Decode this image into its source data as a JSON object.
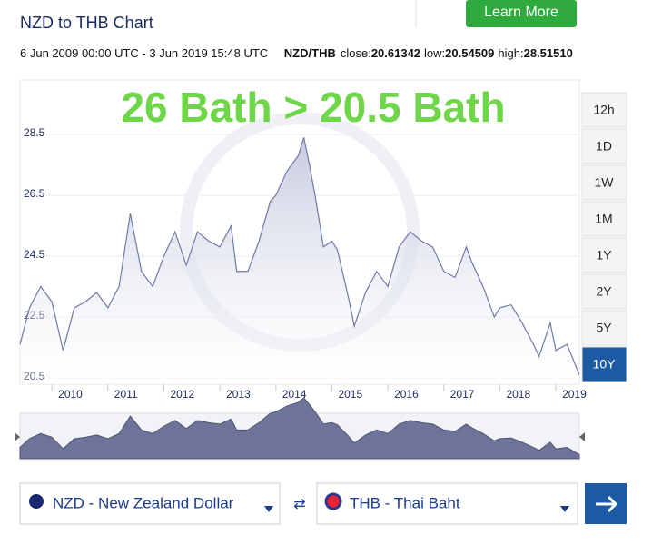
{
  "header": {
    "title": "NZD to THB Chart",
    "button": "Learn More"
  },
  "range": "6 Jun 2009 00:00 UTC - 3 Jun 2019 15:48 UTC",
  "stats": {
    "pair": "NZD/THB",
    "items": [
      {
        "label": "close:",
        "value": "20.61342"
      },
      {
        "label": "low:",
        "value": "20.54509"
      },
      {
        "label": "high:",
        "value": "28.51510"
      }
    ]
  },
  "periods": [
    {
      "label": "12h",
      "active": false
    },
    {
      "label": "1D",
      "active": false
    },
    {
      "label": "1W",
      "active": false
    },
    {
      "label": "1M",
      "active": false
    },
    {
      "label": "1Y",
      "active": false
    },
    {
      "label": "2Y",
      "active": false
    },
    {
      "label": "5Y",
      "active": false
    },
    {
      "label": "10Y",
      "active": true
    }
  ],
  "converter": {
    "from": "NZD - New Zealand Dollar",
    "to": "THB - Thai Baht"
  },
  "chart_data": {
    "type": "area",
    "annotation": "26 Bath > 20.5 Bath",
    "series": [
      {
        "name": "NZD/THB",
        "color": "#6e7aa8",
        "x": [
          2009.43,
          2009.6,
          2009.8,
          2010.0,
          2010.2,
          2010.4,
          2010.6,
          2010.8,
          2011.0,
          2011.2,
          2011.4,
          2011.6,
          2011.8,
          2012.0,
          2012.2,
          2012.4,
          2012.6,
          2012.8,
          2013.0,
          2013.2,
          2013.3,
          2013.5,
          2013.7,
          2013.9,
          2014.0,
          2014.2,
          2014.4,
          2014.5,
          2014.6,
          2014.7,
          2014.85,
          2015.0,
          2015.1,
          2015.3,
          2015.4,
          2015.6,
          2015.8,
          2016.0,
          2016.2,
          2016.4,
          2016.6,
          2016.8,
          2017.0,
          2017.2,
          2017.4,
          2017.5,
          2017.7,
          2017.9,
          2018.0,
          2018.2,
          2018.4,
          2018.6,
          2018.7,
          2018.9,
          2019.0,
          2019.2,
          2019.42
        ],
        "values": [
          21.6,
          22.8,
          23.5,
          23.0,
          21.4,
          22.8,
          23.0,
          23.3,
          22.8,
          23.5,
          25.9,
          24.0,
          23.5,
          24.5,
          25.3,
          24.2,
          25.3,
          25.0,
          24.8,
          25.5,
          24.0,
          24.0,
          25.0,
          26.3,
          26.5,
          27.3,
          27.8,
          28.4,
          27.5,
          26.5,
          24.8,
          25.0,
          24.7,
          23.1,
          22.2,
          23.3,
          24.0,
          23.5,
          24.8,
          25.3,
          25.0,
          24.8,
          24.0,
          23.8,
          24.8,
          24.3,
          23.5,
          22.5,
          22.8,
          22.9,
          22.3,
          21.6,
          21.2,
          22.3,
          21.4,
          21.6,
          20.6
        ]
      }
    ],
    "xlim": [
      2009.43,
      2019.42
    ],
    "xticks": [
      2010,
      2011,
      2012,
      2013,
      2014,
      2015,
      2016,
      2017,
      2018,
      2019
    ],
    "ylim": [
      20.29,
      30.29
    ],
    "yticks": [
      20.5,
      22.5,
      24.5,
      26.5,
      28.5
    ],
    "grid": true
  }
}
